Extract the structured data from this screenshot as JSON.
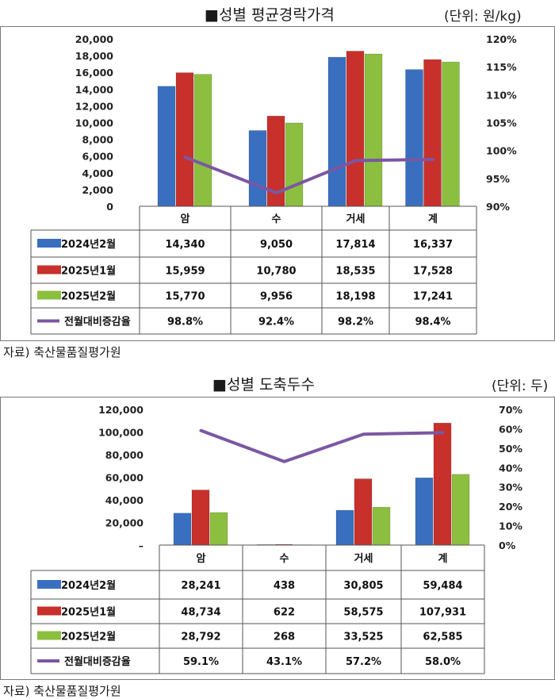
{
  "chart_data": [
    {
      "type": "bar",
      "title": "■성별 평균경락가격",
      "unit": "(단위: 원/kg)",
      "source": "자료) 축산물품질평가원",
      "categories": [
        "암",
        "수",
        "거세",
        "계"
      ],
      "y_ticks": [
        "20,000",
        "18,000",
        "16,000",
        "14,000",
        "12,000",
        "10,000",
        "8,000",
        "6,000",
        "4,000",
        "2,000",
        "0"
      ],
      "y2_ticks": [
        "120%",
        "115%",
        "110%",
        "105%",
        "100%",
        "95%",
        "90%"
      ],
      "ylim": [
        0,
        20000
      ],
      "y2lim": [
        90,
        120
      ],
      "series": [
        {
          "name": "2024년2월",
          "color": "#3a6fc0",
          "values": [
            14340,
            9050,
            17814,
            16337
          ],
          "labels": [
            "14,340",
            "9,050",
            "17,814",
            "16,337"
          ]
        },
        {
          "name": "2025년1월",
          "color": "#c8302c",
          "values": [
            15959,
            10780,
            18535,
            17528
          ],
          "labels": [
            "15,959",
            "10,780",
            "18,535",
            "17,528"
          ]
        },
        {
          "name": "2025년2월",
          "color": "#8cbf3f",
          "values": [
            15770,
            9956,
            18198,
            17241
          ],
          "labels": [
            "15,770",
            "9,956",
            "18,198",
            "17,241"
          ]
        }
      ],
      "line": {
        "name": "전월대비증감율",
        "color": "#7b57a3",
        "values": [
          98.8,
          92.4,
          98.2,
          98.4
        ],
        "labels": [
          "98.8%",
          "92.4%",
          "98.2%",
          "98.4%"
        ]
      }
    },
    {
      "type": "bar",
      "title": "■성별 도축두수",
      "unit": "(단위: 두)",
      "source": "자료) 축산물품질평가원",
      "categories": [
        "암",
        "수",
        "거세",
        "계"
      ],
      "y_ticks": [
        "120,000",
        "100,000",
        "80,000",
        "60,000",
        "40,000",
        "20,000",
        "–"
      ],
      "y2_ticks": [
        "70%",
        "60%",
        "50%",
        "40%",
        "30%",
        "20%",
        "10%",
        "0%"
      ],
      "ylim": [
        0,
        120000
      ],
      "y2lim": [
        0,
        70
      ],
      "series": [
        {
          "name": "2024년2월",
          "color": "#3a6fc0",
          "values": [
            28241,
            438,
            30805,
            59484
          ],
          "labels": [
            "28,241",
            "438",
            "30,805",
            "59,484"
          ]
        },
        {
          "name": "2025년1월",
          "color": "#c8302c",
          "values": [
            48734,
            622,
            58575,
            107931
          ],
          "labels": [
            "48,734",
            "622",
            "58,575",
            "107,931"
          ]
        },
        {
          "name": "2025년2월",
          "color": "#8cbf3f",
          "values": [
            28792,
            268,
            33525,
            62585
          ],
          "labels": [
            "28,792",
            "268",
            "33,525",
            "62,585"
          ]
        }
      ],
      "line": {
        "name": "전월대비증감율",
        "color": "#7b57a3",
        "values": [
          59.1,
          43.1,
          57.2,
          58.0
        ],
        "labels": [
          "59.1%",
          "43.1%",
          "57.2%",
          "58.0%"
        ]
      }
    }
  ]
}
